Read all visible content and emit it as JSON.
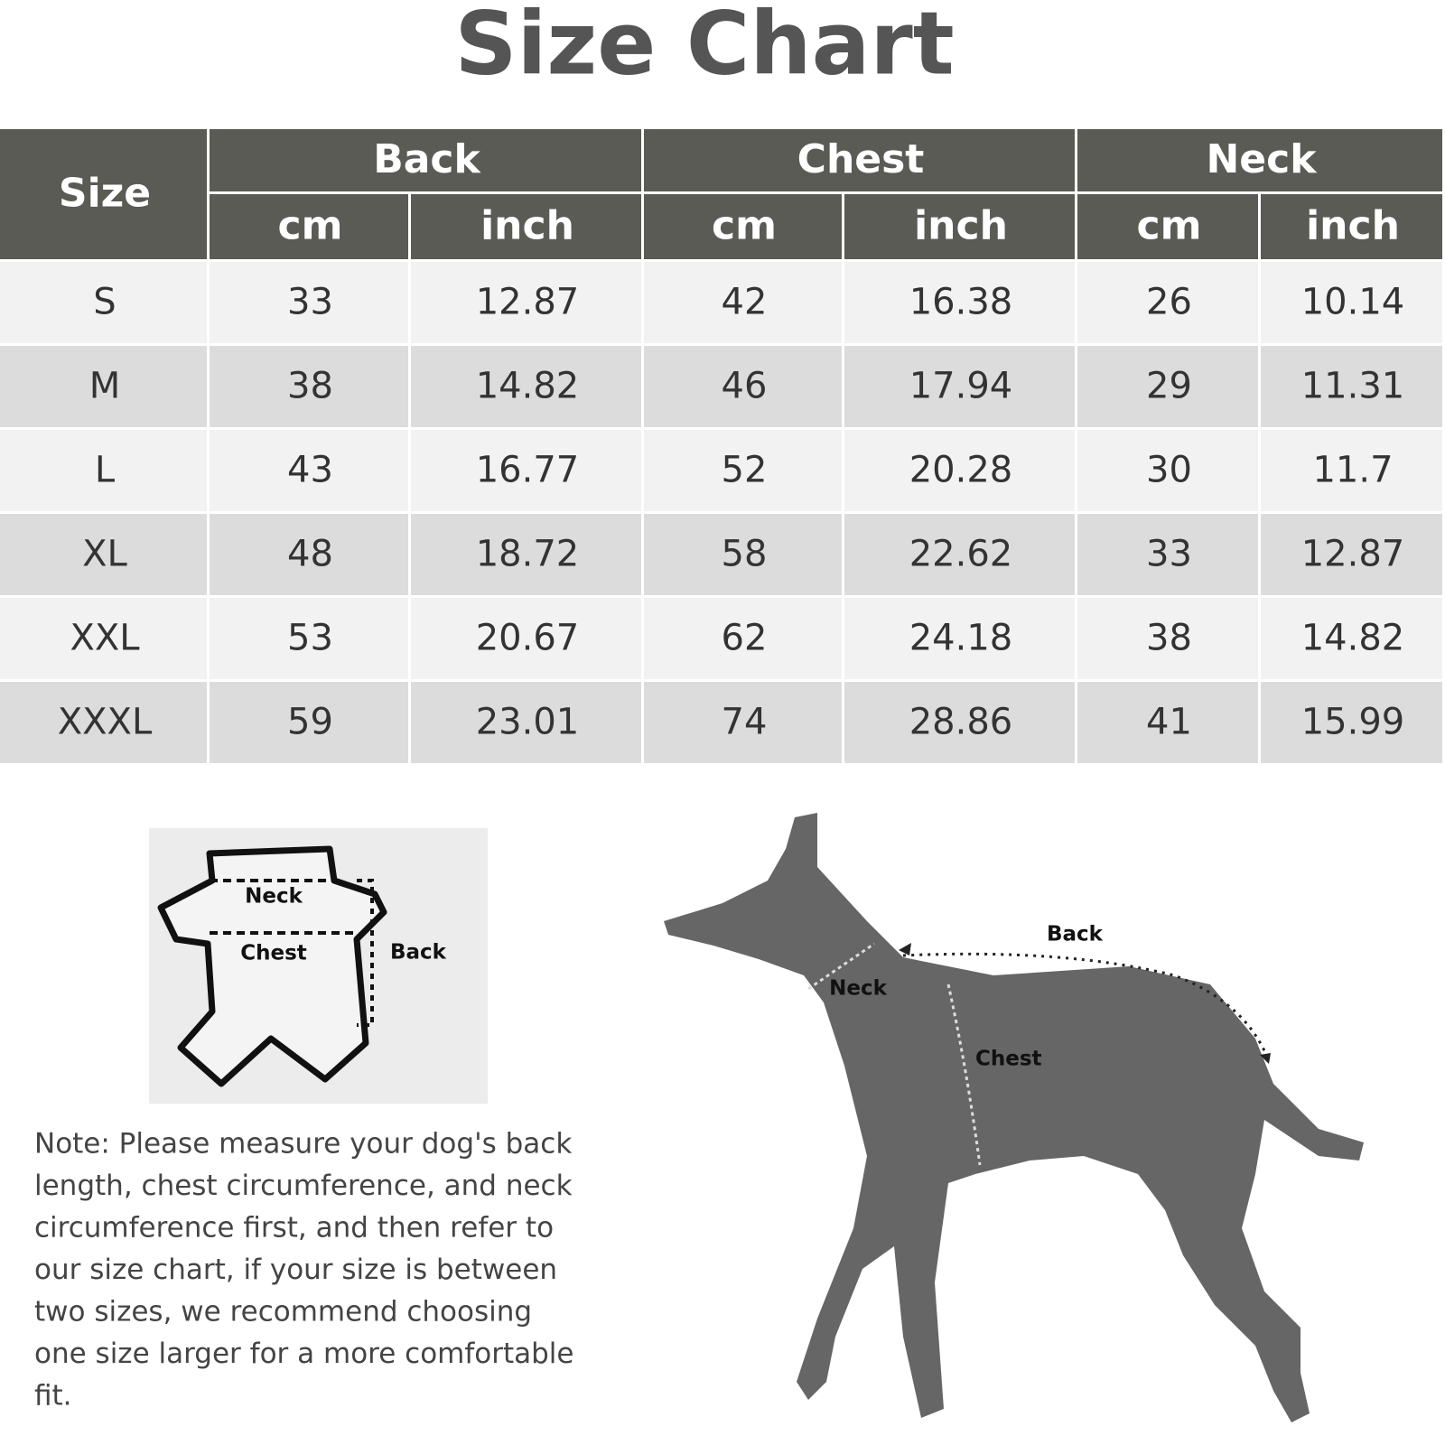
{
  "title": "Size Chart",
  "table": {
    "header": "Size",
    "groups": [
      "Back",
      "Chest",
      "Neck"
    ],
    "units": [
      "cm",
      "inch",
      "cm",
      "inch",
      "cm",
      "inch"
    ],
    "rows": [
      [
        "S",
        33,
        12.87,
        42,
        16.38,
        26,
        10.14
      ],
      [
        "M",
        38,
        14.82,
        46,
        17.94,
        29,
        11.31
      ],
      [
        "L",
        43,
        16.77,
        52,
        20.28,
        30,
        11.7
      ],
      [
        "XL",
        48,
        18.72,
        58,
        22.62,
        33,
        12.87
      ],
      [
        "XXL",
        53,
        20.67,
        62,
        24.18,
        38,
        14.82
      ],
      [
        "XXXL",
        59,
        23.01,
        74,
        28.86,
        41,
        15.99
      ]
    ]
  },
  "garment_diagram": {
    "neck": "Neck",
    "chest": "Chest",
    "back": "Back"
  },
  "dog_diagram": {
    "back": "Back",
    "neck": "Neck",
    "chest": "Chest"
  },
  "note": [
    "Note: Please measure your dog's back",
    "length, chest circumference, and neck",
    "circumference first, and then refer to",
    "our size chart, if your size is between",
    "two sizes, we recommend choosing",
    "one size larger for a more comfortable",
    "fit."
  ]
}
